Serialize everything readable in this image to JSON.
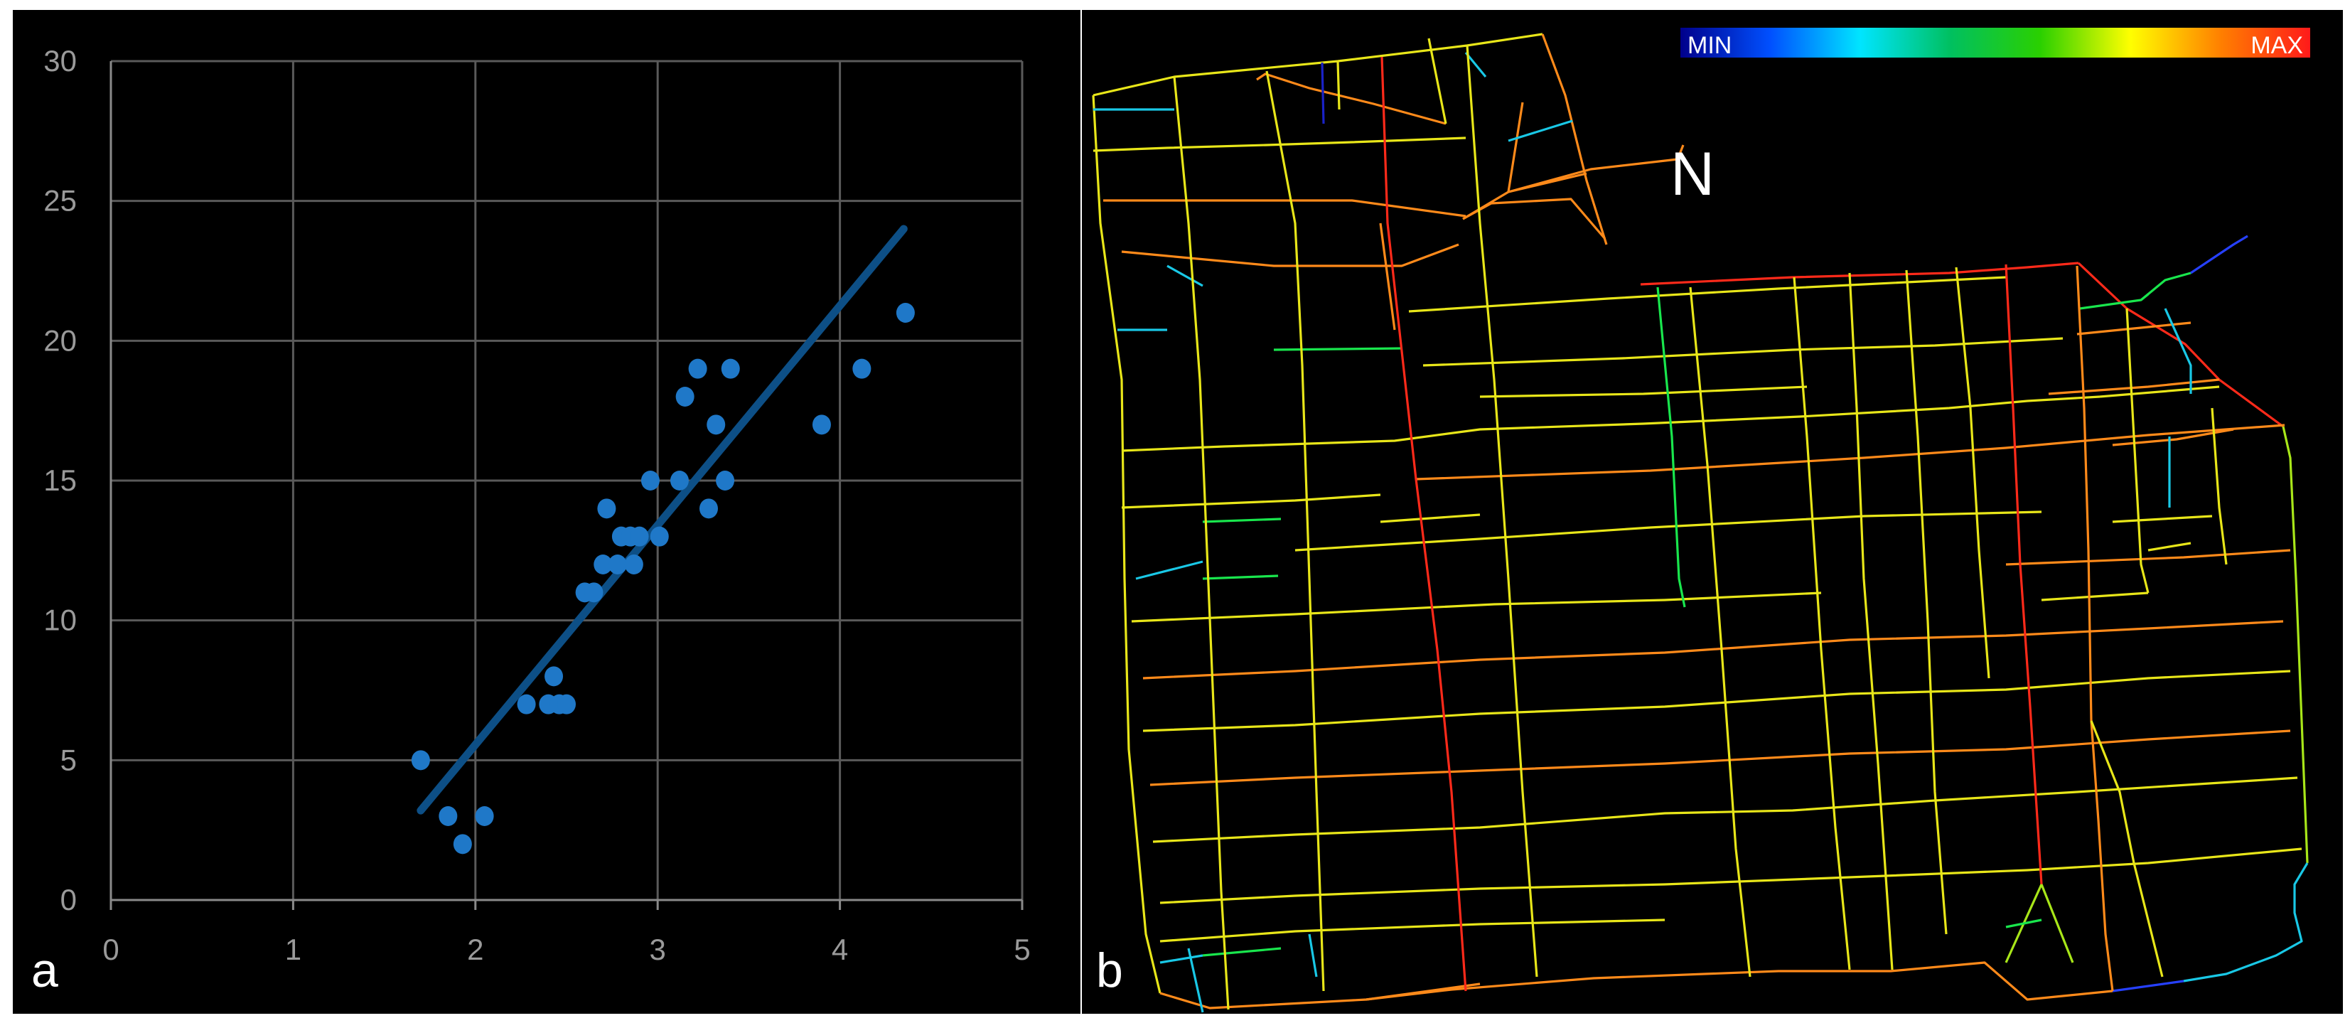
{
  "chart_data": [
    {
      "type": "scatter",
      "panel_label": "a",
      "xlim": [
        0,
        5
      ],
      "ylim": [
        0,
        30
      ],
      "x_ticks": [
        "0",
        "1",
        "2",
        "3",
        "4",
        "5"
      ],
      "y_ticks": [
        "0",
        "5",
        "10",
        "15",
        "20",
        "25",
        "30"
      ],
      "grid": true,
      "point_color": "#1f78c8",
      "trendline_color": "#0d4f86",
      "trendline": {
        "x": [
          1.7,
          4.35
        ],
        "y": [
          3.2,
          24.0
        ]
      },
      "points": [
        {
          "x": 1.7,
          "y": 5
        },
        {
          "x": 1.85,
          "y": 3
        },
        {
          "x": 1.93,
          "y": 2
        },
        {
          "x": 2.05,
          "y": 3
        },
        {
          "x": 2.28,
          "y": 7
        },
        {
          "x": 2.4,
          "y": 7
        },
        {
          "x": 2.43,
          "y": 8
        },
        {
          "x": 2.46,
          "y": 7
        },
        {
          "x": 2.5,
          "y": 7
        },
        {
          "x": 2.6,
          "y": 11
        },
        {
          "x": 2.65,
          "y": 11
        },
        {
          "x": 2.7,
          "y": 12
        },
        {
          "x": 2.72,
          "y": 14
        },
        {
          "x": 2.78,
          "y": 12
        },
        {
          "x": 2.8,
          "y": 13
        },
        {
          "x": 2.85,
          "y": 13
        },
        {
          "x": 2.87,
          "y": 12
        },
        {
          "x": 2.9,
          "y": 13
        },
        {
          "x": 2.96,
          "y": 15
        },
        {
          "x": 3.01,
          "y": 13
        },
        {
          "x": 3.12,
          "y": 15
        },
        {
          "x": 3.15,
          "y": 18
        },
        {
          "x": 3.22,
          "y": 19
        },
        {
          "x": 3.28,
          "y": 14
        },
        {
          "x": 3.32,
          "y": 17
        },
        {
          "x": 3.37,
          "y": 15
        },
        {
          "x": 3.4,
          "y": 19
        },
        {
          "x": 3.9,
          "y": 17
        },
        {
          "x": 4.12,
          "y": 19
        },
        {
          "x": 4.36,
          "y": 21
        }
      ]
    }
  ],
  "map": {
    "panel_label": "b",
    "north_label": "N",
    "legend": {
      "min_label": "MIN",
      "max_label": "MAX",
      "gradient": [
        "#00008b",
        "#0050ff",
        "#00e5ff",
        "#00c060",
        "#2ad000",
        "#ffff00",
        "#ff8000",
        "#ff1a1a"
      ]
    },
    "colors": {
      "red": "#ff2a1a",
      "orange": "#ff8a1a",
      "yellow": "#e8e619",
      "lime": "#a8e619",
      "green": "#19e64d",
      "cyan": "#19c8e6",
      "blue": "#2640ff",
      "navy": "#1a22c8"
    }
  }
}
